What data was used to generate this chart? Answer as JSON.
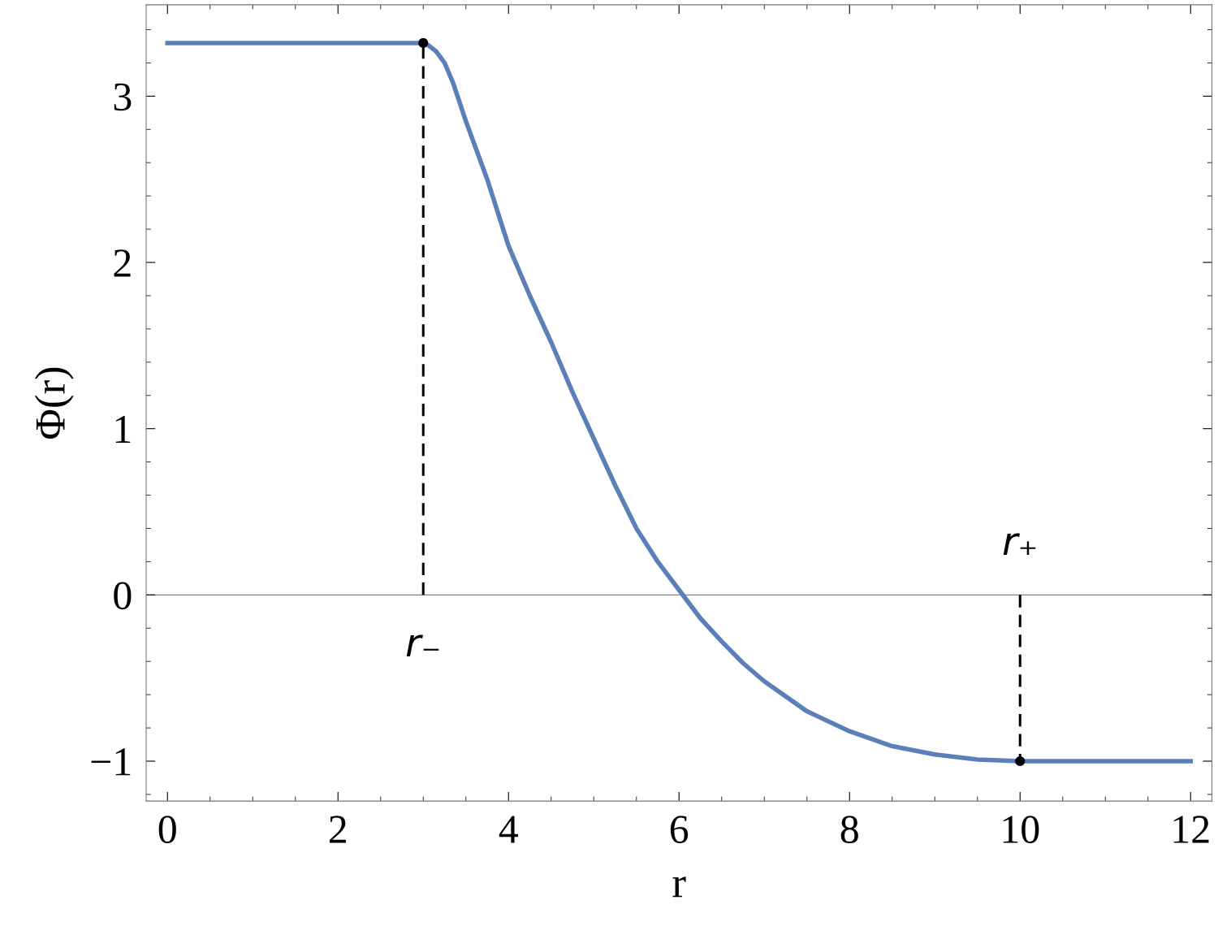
{
  "chart_data": {
    "type": "line",
    "xlabel": "r",
    "ylabel": "Φ(r)",
    "series": [
      {
        "color": "#5b7fb8",
        "x": [
          0,
          1,
          2,
          3,
          3.05,
          3.15,
          3.25,
          3.35,
          3.5,
          3.75,
          4,
          4.25,
          4.5,
          4.75,
          5,
          5.25,
          5.5,
          5.75,
          6,
          6.25,
          6.5,
          6.75,
          7,
          7.5,
          8,
          8.5,
          9,
          9.5,
          10,
          11,
          12
        ],
        "values": [
          3.32,
          3.32,
          3.32,
          3.32,
          3.31,
          3.27,
          3.2,
          3.08,
          2.85,
          2.5,
          2.1,
          1.8,
          1.52,
          1.22,
          0.94,
          0.66,
          0.4,
          0.2,
          0.03,
          -0.14,
          -0.28,
          -0.41,
          -0.52,
          -0.7,
          -0.82,
          -0.91,
          -0.96,
          -0.99,
          -1,
          -1,
          -1
        ]
      },
      {
        "type": "line",
        "color": "#000000",
        "line_style": "dashed",
        "x": [
          3,
          3
        ],
        "values": [
          0,
          3.32
        ]
      },
      {
        "type": "line",
        "color": "#000000",
        "line_style": "dashed",
        "x": [
          10,
          10
        ],
        "values": [
          0,
          -1
        ]
      },
      {
        "type": "scatter",
        "color": "#000000",
        "marker": "circle",
        "x": [
          3,
          10
        ],
        "values": [
          3.32,
          -1
        ]
      }
    ],
    "ref_lines": [
      {
        "axis": "y",
        "value": 0,
        "color": "#808080"
      }
    ],
    "annotations": [
      {
        "text": "r₋",
        "x": 3,
        "y": 0
      },
      {
        "text": "r₊",
        "x": 10,
        "y": 0
      }
    ],
    "xlim": [
      -0.25,
      12.25
    ],
    "ylim": [
      -1.24,
      3.55
    ],
    "xticks": [
      0,
      2,
      4,
      6,
      8,
      10,
      12
    ],
    "yticks": [
      {
        "value": -1,
        "label": "−1"
      },
      0,
      1,
      2,
      3
    ],
    "grid": false
  }
}
